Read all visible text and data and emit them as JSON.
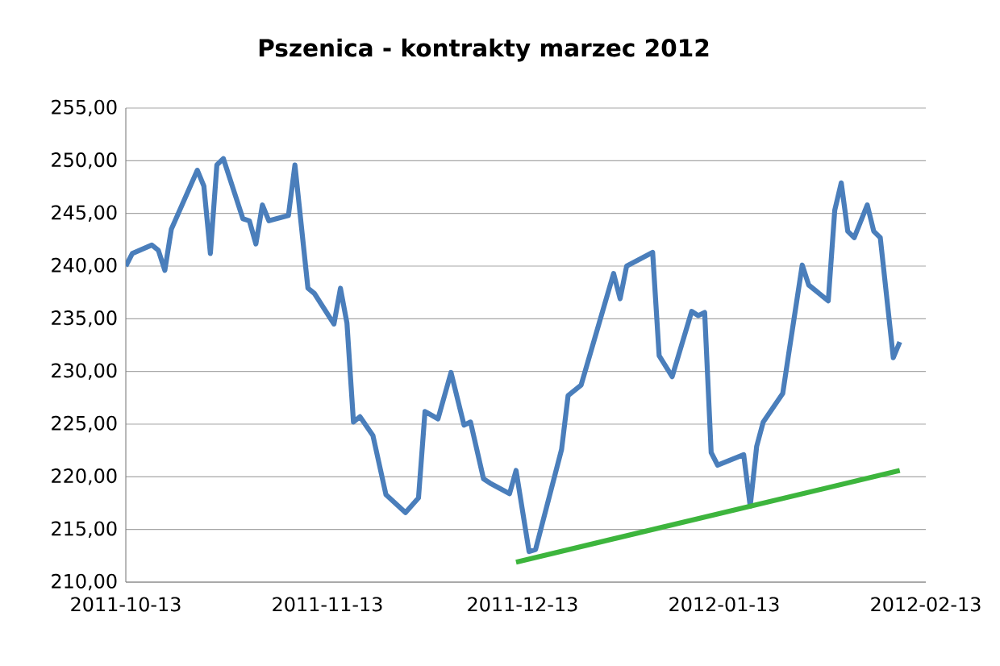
{
  "chart_data": {
    "type": "line",
    "title": "Pszenica - kontrakty marzec 2012",
    "xlim": [
      "2011-10-13",
      "2012-02-13"
    ],
    "xticks": [
      "2011-10-13",
      "2011-11-13",
      "2011-12-13",
      "2012-01-13",
      "2012-02-13"
    ],
    "ylim": [
      210,
      255
    ],
    "yticks": [
      {
        "value": 210,
        "label": "210,00"
      },
      {
        "value": 215,
        "label": "215,00"
      },
      {
        "value": 220,
        "label": "220,00"
      },
      {
        "value": 225,
        "label": "225,00"
      },
      {
        "value": 230,
        "label": "230,00"
      },
      {
        "value": 235,
        "label": "235,00"
      },
      {
        "value": 240,
        "label": "240,00"
      },
      {
        "value": 245,
        "label": "245,00"
      },
      {
        "value": 250,
        "label": "250,00"
      },
      {
        "value": 255,
        "label": "255,00"
      }
    ],
    "grid": "y",
    "marker": "none",
    "series": [
      {
        "color": "#4a7ebb",
        "x": [
          "2011-10-13",
          "2011-10-14",
          "2011-10-17",
          "2011-10-18",
          "2011-10-19",
          "2011-10-20",
          "2011-10-24",
          "2011-10-25",
          "2011-10-26",
          "2011-10-27",
          "2011-10-28",
          "2011-10-31",
          "2011-11-01",
          "2011-11-02",
          "2011-11-03",
          "2011-11-04",
          "2011-11-07",
          "2011-11-08",
          "2011-11-10",
          "2011-11-11",
          "2011-11-14",
          "2011-11-15",
          "2011-11-16",
          "2011-11-17",
          "2011-11-18",
          "2011-11-20",
          "2011-11-22",
          "2011-11-25",
          "2011-11-27",
          "2011-11-28",
          "2011-11-30",
          "2011-12-02",
          "2011-12-04",
          "2011-12-05",
          "2011-12-07",
          "2011-12-08",
          "2011-12-11",
          "2011-12-12",
          "2011-12-14",
          "2011-12-15",
          "2011-12-19",
          "2011-12-20",
          "2011-12-22",
          "2011-12-27",
          "2011-12-28",
          "2011-12-29",
          "2012-01-02",
          "2012-01-03",
          "2012-01-05",
          "2012-01-08",
          "2012-01-09",
          "2012-01-10",
          "2012-01-11",
          "2012-01-12",
          "2012-01-16",
          "2012-01-17",
          "2012-01-18",
          "2012-01-19",
          "2012-01-22",
          "2012-01-23",
          "2012-01-25",
          "2012-01-26",
          "2012-01-29",
          "2012-01-30",
          "2012-01-31",
          "2012-02-01",
          "2012-02-02",
          "2012-02-04",
          "2012-02-05",
          "2012-02-06",
          "2012-02-08",
          "2012-02-09"
        ],
        "values": [
          240.0,
          241.2,
          242.0,
          241.5,
          239.6,
          243.5,
          249.1,
          247.6,
          241.2,
          249.6,
          250.2,
          244.5,
          244.3,
          242.1,
          245.8,
          244.3,
          244.8,
          249.6,
          237.9,
          237.4,
          234.5,
          237.9,
          234.6,
          225.2,
          225.7,
          223.9,
          218.3,
          216.6,
          218.0,
          226.2,
          225.5,
          229.9,
          224.9,
          225.2,
          219.8,
          219.4,
          218.4,
          220.6,
          212.9,
          213.1,
          222.6,
          227.7,
          228.7,
          239.3,
          236.9,
          240.0,
          241.3,
          231.5,
          229.5,
          235.7,
          235.3,
          235.6,
          222.3,
          221.1,
          222.1,
          217.2,
          222.9,
          225.2,
          227.9,
          232.0,
          240.1,
          238.2,
          236.7,
          245.3,
          247.9,
          243.3,
          242.7,
          245.8,
          243.3,
          242.7,
          231.3,
          232.8
        ]
      },
      {
        "color": "#3db53d",
        "x": [
          "2011-12-12",
          "2012-02-09"
        ],
        "values": [
          211.9,
          220.6
        ]
      }
    ]
  }
}
